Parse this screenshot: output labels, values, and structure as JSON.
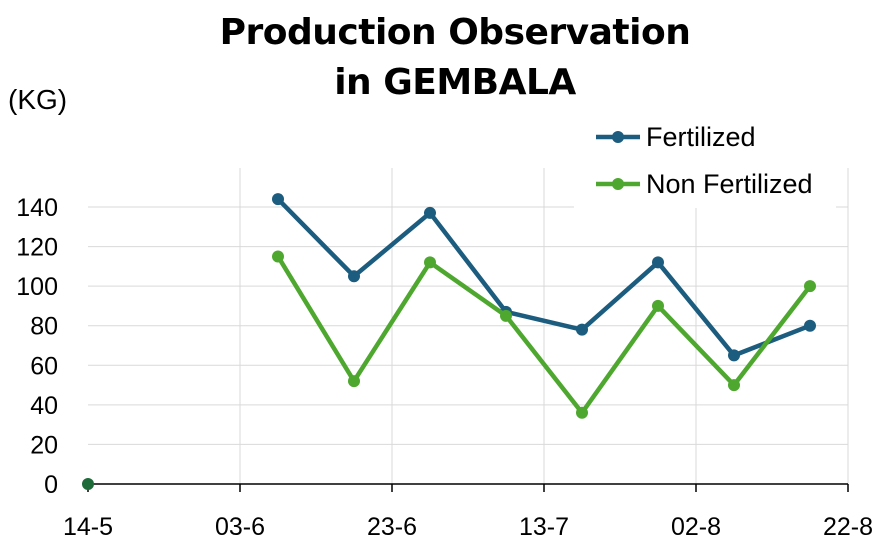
{
  "chart_data": {
    "type": "line",
    "title_line1": "Production Observation",
    "title_line2": "in GEMBALA",
    "ylabel": "(KG)",
    "xlabel": "",
    "x_ticks": [
      "14-5",
      "03-6",
      "23-6",
      "13-7",
      "02-8",
      "22-8"
    ],
    "x_range": [
      "2024-05-14",
      "2024-08-22"
    ],
    "ylim": [
      0,
      140
    ],
    "y_ticks": [
      0,
      20,
      40,
      60,
      80,
      100,
      120,
      140
    ],
    "grid": true,
    "legend_position": "top-right",
    "x": [
      "2024-06-08",
      "2024-06-18",
      "2024-06-28",
      "2024-07-08",
      "2024-07-18",
      "2024-07-28",
      "2024-08-07",
      "2024-08-17"
    ],
    "series": [
      {
        "name": "Fertilized",
        "color": "#1c5c7e",
        "values": [
          144,
          105,
          137,
          87,
          78,
          112,
          65,
          80
        ]
      },
      {
        "name": "Non Fertilized",
        "color": "#4ea72e",
        "values": [
          115,
          52,
          112,
          85,
          36,
          90,
          50,
          100
        ]
      }
    ],
    "extra_point": {
      "x": "2024-05-14",
      "y": 0,
      "color": "#1e6b3a"
    }
  }
}
